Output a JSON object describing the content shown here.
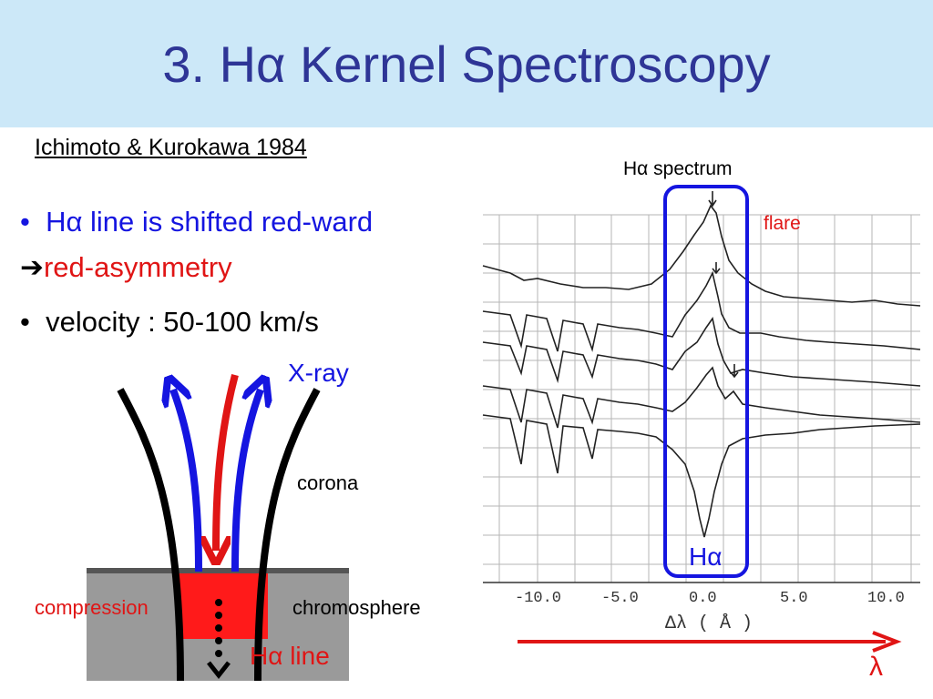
{
  "slide": {
    "title": "3. Hα Kernel Spectroscopy",
    "citation": "Ichimoto & Kurokawa 1984",
    "bullets": [
      "Hα line is shifted red-ward",
      "red-asymmetry",
      "velocity : 50-100 km/s"
    ],
    "arrow_glyph": "➔",
    "bullet_glyph": "•"
  },
  "diagram": {
    "xray_label": "X-ray",
    "corona_label": "corona",
    "chromosphere_label": "chromosphere",
    "compression_label": "compression",
    "halpha_line_label": "Hα line"
  },
  "spectrum": {
    "title": "Hα spectrum",
    "flare_label": "flare",
    "halpha_label": "Hα",
    "ticks": [
      "-10.0",
      "-5.0",
      "0.0",
      "5.0",
      "10.0"
    ],
    "axis_label": "Δλ ( Å )",
    "lambda_label": "λ"
  },
  "colors": {
    "title": "#2e3596",
    "blue": "#1515e0",
    "red": "#e01515",
    "title_band": "#cce8f8",
    "chromosphere_gray": "#9a9a9a"
  }
}
